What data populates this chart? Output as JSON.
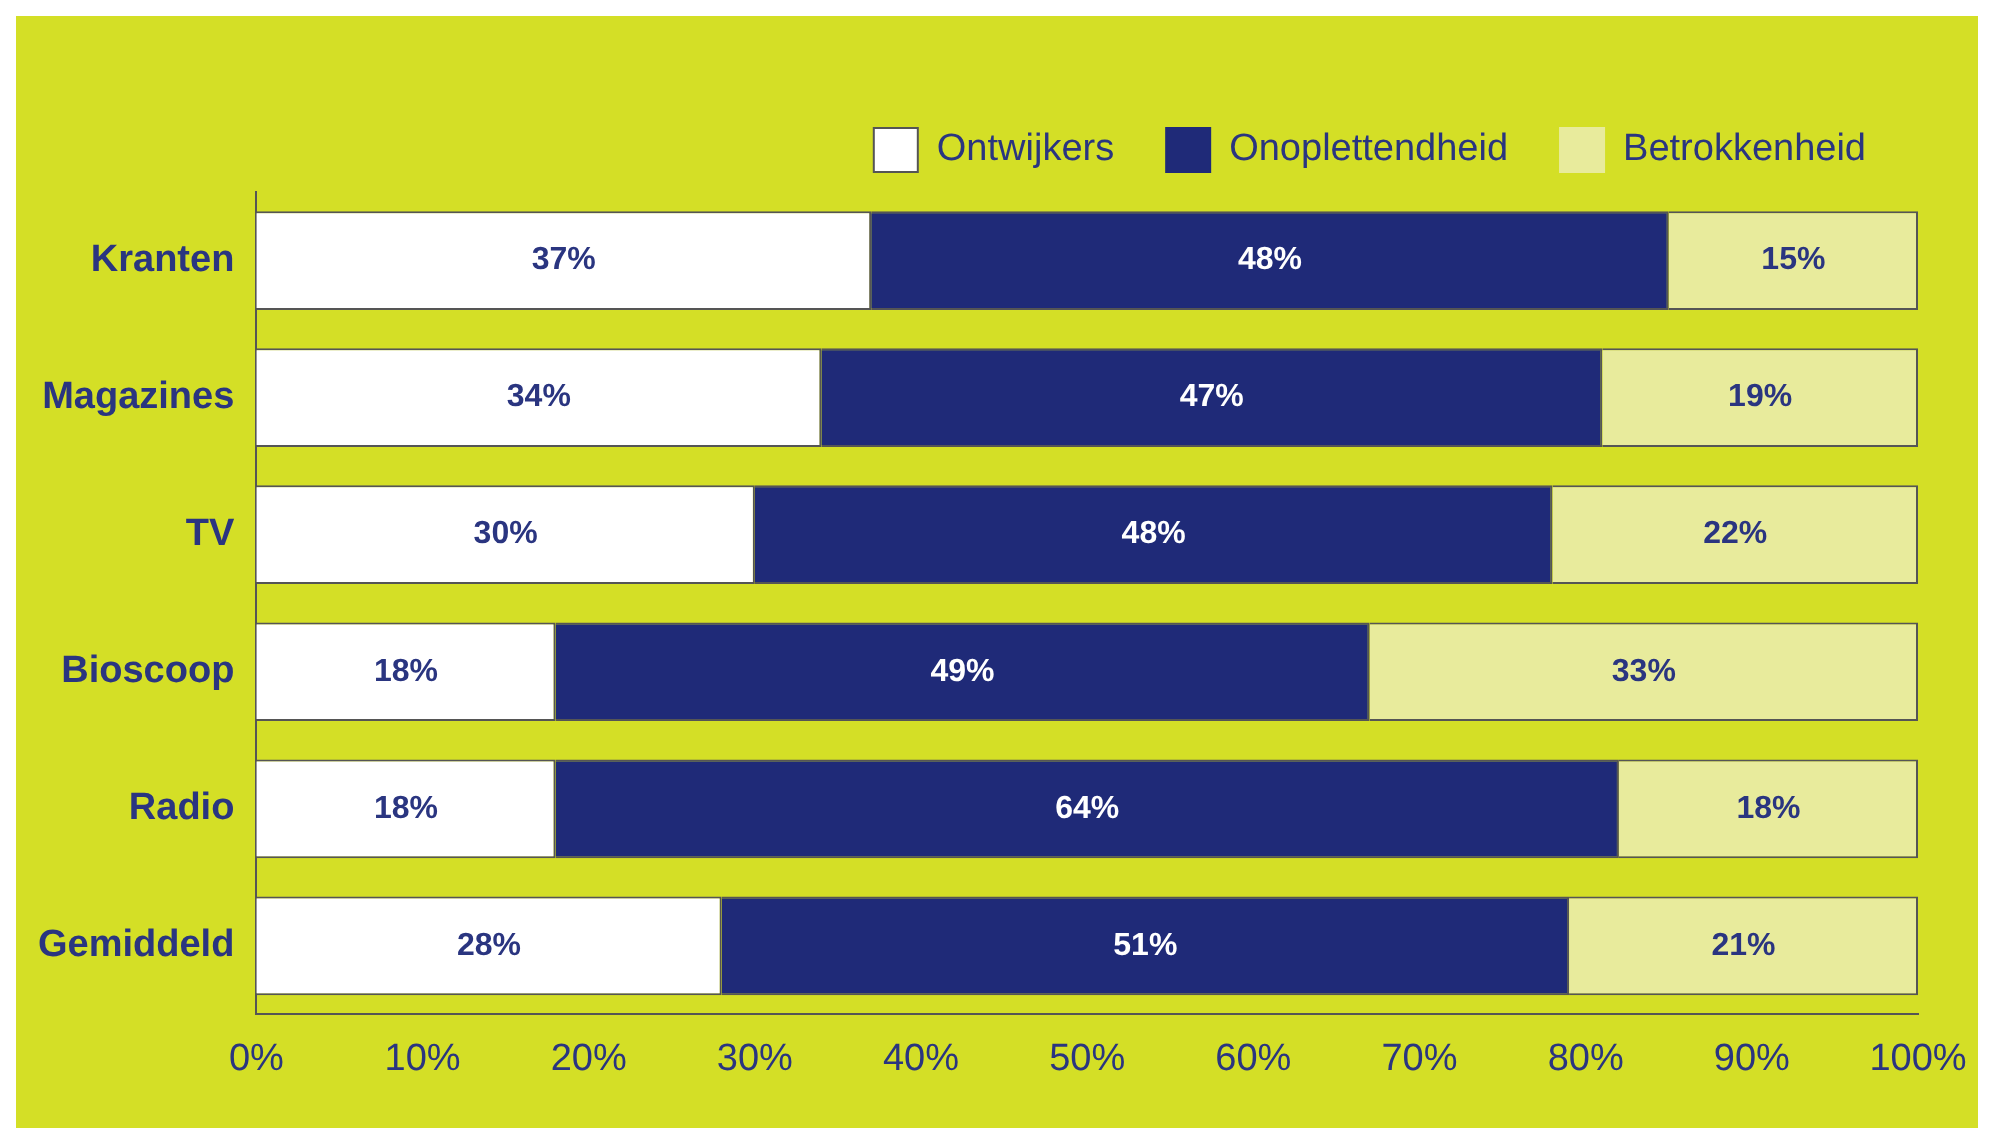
{
  "chart_data": {
    "type": "bar",
    "orientation": "horizontal",
    "stacked": true,
    "legend": "top right",
    "grid": false,
    "categories": [
      "Kranten",
      "Magazines",
      "TV",
      "Bioscoop",
      "Radio",
      "Gemiddeld"
    ],
    "series": [
      {
        "name": "Ontwijkers",
        "color": "#ffffff",
        "values": [
          37,
          34,
          30,
          18,
          18,
          28
        ],
        "value_labels": [
          "37%",
          "34%",
          "30%",
          "18%",
          "18%",
          "28%"
        ]
      },
      {
        "name": "Onoplettendheid",
        "color": "#1f2a78",
        "values": [
          48,
          47,
          48,
          49,
          64,
          51
        ],
        "value_labels": [
          "48%",
          "47%",
          "48%",
          "49%",
          "64%",
          "51%"
        ]
      },
      {
        "name": "Betrokkenheid",
        "color": "#e8eb9c",
        "values": [
          15,
          19,
          22,
          33,
          18,
          21
        ],
        "value_labels": [
          "15%",
          "19%",
          "22%",
          "33%",
          "18%",
          "21%"
        ]
      }
    ],
    "xlim": [
      0,
      100
    ],
    "xticks": [
      {
        "value": 0,
        "label": "0%"
      },
      {
        "value": 10,
        "label": "10%"
      },
      {
        "value": 20,
        "label": "20%"
      },
      {
        "value": 30,
        "label": "30%"
      },
      {
        "value": 40,
        "label": "40%"
      },
      {
        "value": 50,
        "label": "50%"
      },
      {
        "value": 60,
        "label": "60%"
      },
      {
        "value": 70,
        "label": "70%"
      },
      {
        "value": 80,
        "label": "80%"
      },
      {
        "value": 90,
        "label": "90%"
      },
      {
        "value": 100,
        "label": "100%"
      }
    ]
  }
}
